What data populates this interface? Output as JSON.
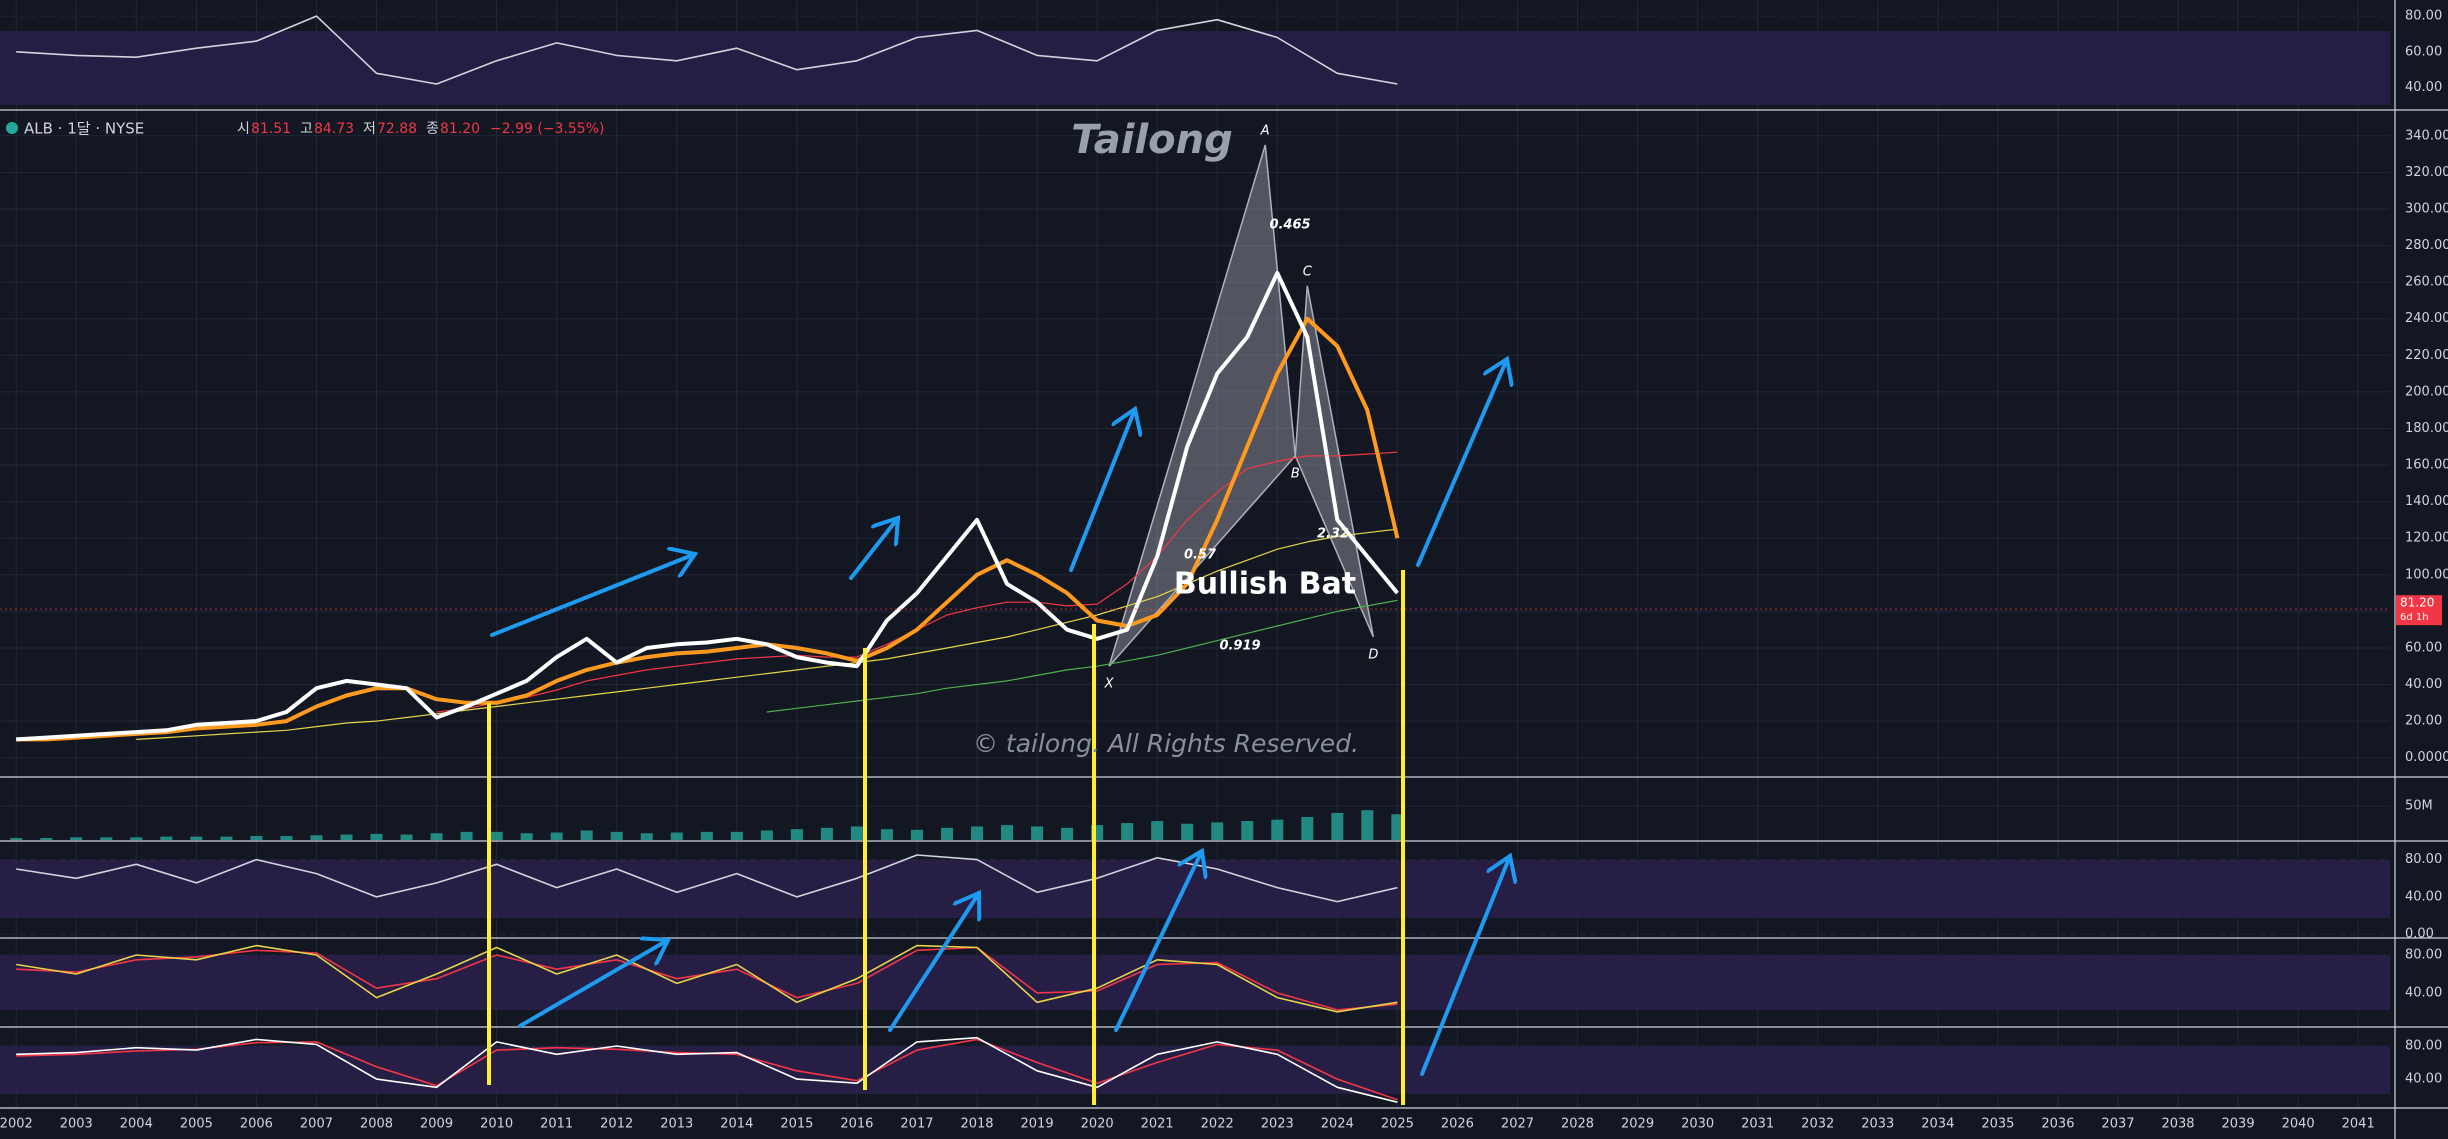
{
  "header": {
    "symbol": "ALB · 1달 · NYSE",
    "ohlc": [
      {
        "label": "시",
        "value": "81.51"
      },
      {
        "label": "고",
        "value": "84.73"
      },
      {
        "label": "저",
        "value": "72.88"
      },
      {
        "label": "종",
        "value": "81.20"
      }
    ],
    "change": "−2.99 (−3.55%)"
  },
  "texts": {
    "title": "Tailong",
    "pattern_name": "Bullish Bat",
    "copyright": "© tailong. All Rights Reserved.",
    "ratios": [
      "0.465",
      "0.57",
      "2.32",
      "0.919"
    ]
  },
  "x_axis": {
    "xlim": [
      2001.73,
      2041.53
    ],
    "xticks": [
      2002,
      2003,
      2004,
      2005,
      2006,
      2007,
      2008,
      2009,
      2010,
      2011,
      2012,
      2013,
      2014,
      2015,
      2016,
      2017,
      2018,
      2019,
      2020,
      2021,
      2022,
      2023,
      2024,
      2025,
      2026,
      2027,
      2028,
      2029,
      2030,
      2031,
      2032,
      2033,
      2034,
      2035,
      2036,
      2037,
      2038,
      2039,
      2040,
      2041
    ]
  },
  "chart_data": [
    {
      "type": "line",
      "ylim": [
        28,
        89
      ],
      "yticks": [
        {
          "value": 40,
          "label": "40.00"
        },
        {
          "value": 60,
          "label": "60.00"
        },
        {
          "value": 80,
          "label": "80.00"
        }
      ],
      "x": [
        2002,
        2003,
        2004,
        2005,
        2006,
        2007,
        2008,
        2009,
        2010,
        2011,
        2012,
        2013,
        2014,
        2015,
        2016,
        2017,
        2018,
        2019,
        2020,
        2021,
        2022,
        2023,
        2024,
        2025
      ],
      "series": [
        {
          "color": "#d1d4dc",
          "values": [
            60,
            58,
            57,
            62,
            66,
            80,
            48,
            42,
            55,
            65,
            58,
            55,
            62,
            50,
            55,
            68,
            72,
            58,
            55,
            72,
            78,
            68,
            48,
            42
          ]
        }
      ]
    },
    {
      "type": "line",
      "ylim": [
        -10,
        353
      ],
      "yticks": [
        {
          "value": 0,
          "label": "0.0000"
        },
        {
          "value": 20,
          "label": "20.00"
        },
        {
          "value": 40,
          "label": "40.00"
        },
        {
          "value": 60,
          "label": "60.00"
        },
        {
          "value": 80,
          "label": "80.00"
        },
        {
          "value": 100,
          "label": "100.00"
        },
        {
          "value": 120,
          "label": "120.00"
        },
        {
          "value": 140,
          "label": "140.00"
        },
        {
          "value": 160,
          "label": "160.00"
        },
        {
          "value": 180,
          "label": "180.00"
        },
        {
          "value": 200,
          "label": "200.00"
        },
        {
          "value": 220,
          "label": "220.00"
        },
        {
          "value": 240,
          "label": "240.00"
        },
        {
          "value": 260,
          "label": "260.00"
        },
        {
          "value": 280,
          "label": "280.00"
        },
        {
          "value": 300,
          "label": "300.00"
        },
        {
          "value": 320,
          "label": "320.00"
        },
        {
          "value": 340,
          "label": "340.00"
        }
      ],
      "last_price": {
        "value": 81.2,
        "label": "81.20"
      },
      "countdown": "6d 1h",
      "x": [
        2002,
        2002.5,
        2003,
        2003.5,
        2004,
        2004.5,
        2005,
        2005.5,
        2006,
        2006.5,
        2007,
        2007.5,
        2008,
        2008.5,
        2009,
        2009.5,
        2010,
        2010.5,
        2011,
        2011.5,
        2012,
        2012.5,
        2013,
        2013.5,
        2014,
        2014.5,
        2015,
        2015.5,
        2016,
        2016.5,
        2017,
        2017.5,
        2018,
        2018.5,
        2019,
        2019.5,
        2020,
        2020.5,
        2021,
        2021.5,
        2022,
        2022.5,
        2023,
        2023.5,
        2024,
        2024.5,
        2025
      ],
      "series": [
        {
          "color": "#f23645",
          "width": 1.2,
          "values": [
            null,
            null,
            null,
            null,
            null,
            null,
            null,
            null,
            null,
            null,
            null,
            null,
            null,
            null,
            25,
            27,
            30,
            33,
            37,
            42,
            45,
            48,
            50,
            52,
            54,
            55,
            56,
            55,
            55,
            62,
            70,
            78,
            82,
            85,
            85,
            83,
            84,
            95,
            110,
            130,
            145,
            158,
            162,
            165,
            165,
            166,
            167
          ]
        },
        {
          "color": "#e5d54a",
          "width": 1.2,
          "values": [
            null,
            null,
            null,
            null,
            10,
            11,
            12,
            13,
            14,
            15,
            17,
            19,
            20,
            22,
            24,
            26,
            28,
            30,
            32,
            34,
            36,
            38,
            40,
            42,
            44,
            46,
            48,
            50,
            52,
            54,
            57,
            60,
            63,
            66,
            70,
            74,
            78,
            83,
            88,
            95,
            102,
            108,
            114,
            118,
            121,
            123,
            125
          ]
        },
        {
          "color": "#4caf50",
          "width": 1.2,
          "values": [
            null,
            null,
            null,
            null,
            null,
            null,
            null,
            null,
            null,
            null,
            null,
            null,
            null,
            null,
            null,
            null,
            null,
            null,
            null,
            null,
            null,
            null,
            null,
            null,
            null,
            25,
            27,
            29,
            31,
            33,
            35,
            38,
            40,
            42,
            45,
            48,
            50,
            53,
            56,
            60,
            64,
            68,
            72,
            76,
            80,
            83,
            86
          ]
        },
        {
          "color": "#ff9a1f",
          "width": 4,
          "values": [
            10,
            10,
            11,
            12,
            13,
            14,
            16,
            17,
            18,
            20,
            28,
            34,
            38,
            38,
            32,
            30,
            30,
            34,
            42,
            48,
            52,
            55,
            57,
            58,
            60,
            62,
            60,
            57,
            53,
            60,
            70,
            85,
            100,
            108,
            100,
            90,
            75,
            72,
            78,
            95,
            130,
            170,
            210,
            240,
            225,
            190,
            120
          ]
        },
        {
          "color": "#ffffff",
          "width": 4,
          "values": [
            10,
            11,
            12,
            13,
            14,
            15,
            18,
            19,
            20,
            25,
            38,
            42,
            40,
            38,
            22,
            28,
            35,
            42,
            55,
            65,
            52,
            60,
            62,
            63,
            65,
            62,
            55,
            52,
            50,
            75,
            90,
            110,
            130,
            95,
            85,
            70,
            65,
            70,
            110,
            170,
            210,
            230,
            265,
            230,
            130,
            110,
            90
          ]
        }
      ],
      "pattern": [
        {
          "label": "X",
          "x": 2020.2,
          "y": 50
        },
        {
          "label": "A",
          "x": 2022.8,
          "y": 335
        },
        {
          "label": "B",
          "x": 2023.3,
          "y": 165
        },
        {
          "label": "C",
          "x": 2023.5,
          "y": 258
        },
        {
          "label": "D",
          "x": 2024.6,
          "y": 66
        }
      ]
    },
    {
      "type": "bar",
      "ylim": [
        0,
        93000000
      ],
      "yticks": [
        {
          "value": 50000000,
          "label": "50M"
        }
      ],
      "color": "#26a69a",
      "x": [
        2002,
        2002.5,
        2003,
        2003.5,
        2004,
        2004.5,
        2005,
        2005.5,
        2006,
        2006.5,
        2007,
        2007.5,
        2008,
        2008.5,
        2009,
        2009.5,
        2010,
        2010.5,
        2011,
        2011.5,
        2012,
        2012.5,
        2013,
        2013.5,
        2014,
        2014.5,
        2015,
        2015.5,
        2016,
        2016.5,
        2017,
        2017.5,
        2018,
        2018.5,
        2019,
        2019.5,
        2020,
        2020.5,
        2021,
        2021.5,
        2022,
        2022.5,
        2023,
        2023.5,
        2024,
        2024.5,
        2025
      ],
      "values": [
        3000000,
        3000000,
        4000000,
        4000000,
        4000000,
        5000000,
        5000000,
        5000000,
        6000000,
        6000000,
        7000000,
        8000000,
        9000000,
        8000000,
        10000000,
        12000000,
        12000000,
        10000000,
        11000000,
        14000000,
        12000000,
        10000000,
        11000000,
        12000000,
        12000000,
        14000000,
        16000000,
        18000000,
        20000000,
        16000000,
        15000000,
        18000000,
        20000000,
        22000000,
        20000000,
        18000000,
        22000000,
        25000000,
        28000000,
        24000000,
        26000000,
        28000000,
        30000000,
        34000000,
        40000000,
        44000000,
        38000000
      ]
    },
    {
      "type": "line",
      "ylim": [
        -3,
        100
      ],
      "yticks": [
        {
          "value": 0,
          "label": "0.00"
        },
        {
          "value": 40,
          "label": "40.00"
        },
        {
          "value": 80,
          "label": "80.00"
        }
      ],
      "x": [
        2002,
        2003,
        2004,
        2005,
        2006,
        2007,
        2008,
        2009,
        2010,
        2011,
        2012,
        2013,
        2014,
        2015,
        2016,
        2017,
        2018,
        2019,
        2020,
        2021,
        2022,
        2023,
        2024,
        2025
      ],
      "series": [
        {
          "color": "#d1d4dc",
          "values": [
            70,
            60,
            75,
            55,
            80,
            65,
            40,
            55,
            75,
            50,
            70,
            45,
            65,
            40,
            60,
            85,
            80,
            45,
            60,
            82,
            70,
            50,
            35,
            50
          ]
        }
      ]
    },
    {
      "type": "line",
      "ylim": [
        5,
        98
      ],
      "yticks": [
        {
          "value": 40,
          "label": "40.00"
        },
        {
          "value": 80,
          "label": "80.00"
        }
      ],
      "x": [
        2002,
        2003,
        2004,
        2005,
        2006,
        2007,
        2008,
        2009,
        2010,
        2011,
        2012,
        2013,
        2014,
        2015,
        2016,
        2017,
        2018,
        2019,
        2020,
        2021,
        2022,
        2023,
        2024,
        2025
      ],
      "series": [
        {
          "color": "#f23645",
          "values": [
            65,
            62,
            75,
            78,
            85,
            82,
            45,
            55,
            80,
            65,
            75,
            55,
            65,
            35,
            50,
            85,
            88,
            40,
            42,
            70,
            72,
            40,
            22,
            28
          ]
        },
        {
          "color": "#e5d54a",
          "values": [
            70,
            60,
            80,
            75,
            90,
            80,
            35,
            60,
            88,
            60,
            80,
            50,
            70,
            30,
            55,
            90,
            88,
            30,
            45,
            75,
            70,
            35,
            20,
            30
          ]
        }
      ]
    },
    {
      "type": "line",
      "ylim": [
        5,
        103
      ],
      "yticks": [
        {
          "value": 40,
          "label": "40.00"
        },
        {
          "value": 80,
          "label": "80.00"
        }
      ],
      "x": [
        2002,
        2003,
        2004,
        2005,
        2006,
        2007,
        2008,
        2009,
        2010,
        2011,
        2012,
        2013,
        2014,
        2015,
        2016,
        2017,
        2018,
        2019,
        2020,
        2021,
        2022,
        2023,
        2024,
        2025
      ],
      "series": [
        {
          "color": "#f23645",
          "values": [
            68,
            70,
            74,
            76,
            84,
            85,
            55,
            32,
            75,
            78,
            76,
            72,
            70,
            50,
            38,
            75,
            88,
            60,
            35,
            60,
            82,
            75,
            40,
            15
          ]
        },
        {
          "color": "#ffffff",
          "values": [
            70,
            72,
            78,
            75,
            88,
            82,
            40,
            30,
            85,
            70,
            80,
            70,
            72,
            40,
            35,
            85,
            90,
            50,
            30,
            70,
            85,
            70,
            30,
            12
          ]
        }
      ]
    }
  ]
}
